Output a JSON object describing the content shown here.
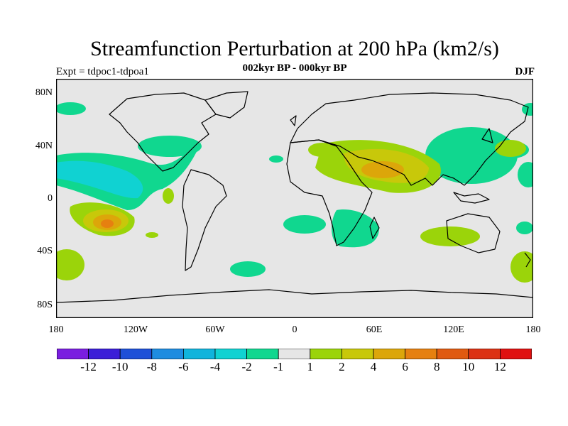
{
  "header": {
    "title": "Streamfunction Perturbation at 200 hPa (km2/s)",
    "subtitle": "002kyr BP - 000kyr BP",
    "left_label": "Expt = tdpoc1-tdpoa1",
    "right_label": "DJF"
  },
  "axes": {
    "y_ticks": [
      "80N",
      "40N",
      "0",
      "40S",
      "80S"
    ],
    "x_ticks": [
      "180",
      "120W",
      "60W",
      "0",
      "60E",
      "120E",
      "180"
    ]
  },
  "colorbar": {
    "colors": [
      "#7a1ee0",
      "#3b1ed8",
      "#1e50d8",
      "#1e8ce0",
      "#10b4dc",
      "#10d2d2",
      "#10d78f",
      "#e6e6e6",
      "#9bd40a",
      "#c8c80a",
      "#dca60a",
      "#e68010",
      "#e05a10",
      "#dc3214",
      "#e01010"
    ],
    "labels": [
      "-12",
      "-10",
      "-8",
      "-6",
      "-4",
      "-2",
      "-1",
      "1",
      "2",
      "4",
      "6",
      "8",
      "10",
      "12"
    ]
  },
  "colors": {
    "neutral": "#e6e6e6",
    "positive_light": "#9bd40a",
    "positive_mid": "#c8c80a",
    "positive_high": "#dca60a",
    "positive_peak": "#e68010",
    "negative_light": "#10d78f",
    "negative_mid": "#10d2d2"
  }
}
